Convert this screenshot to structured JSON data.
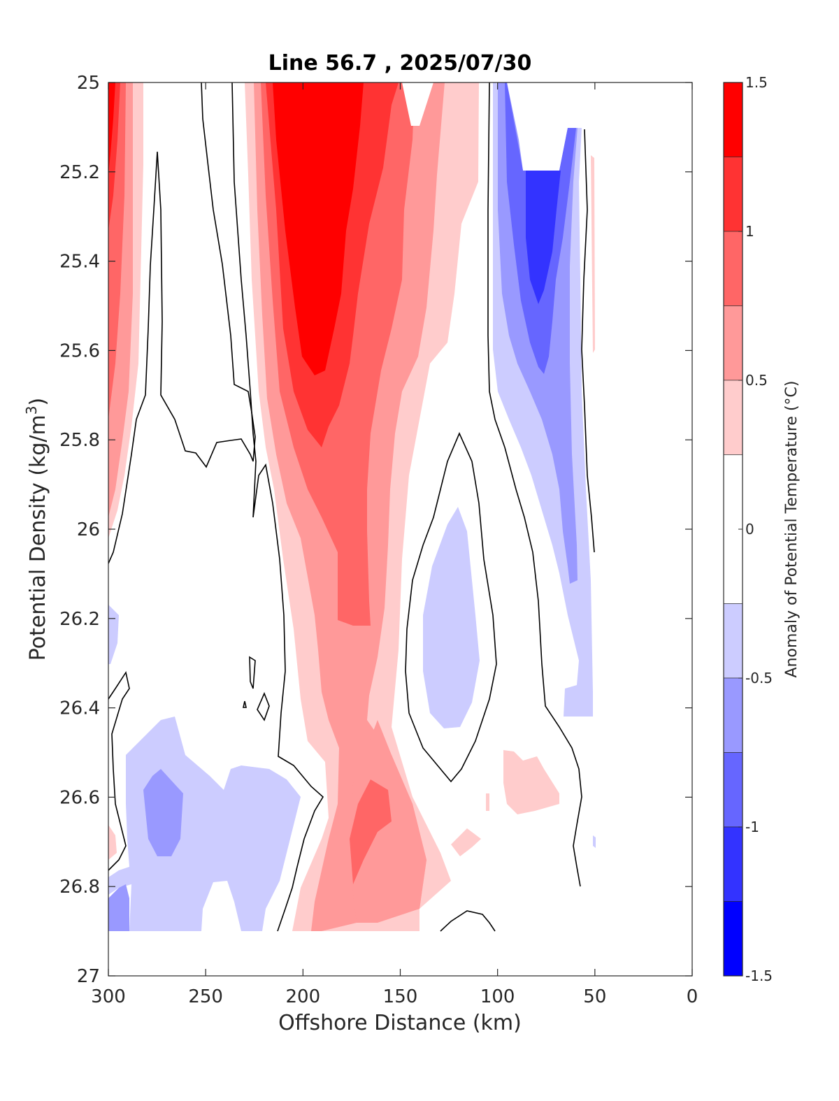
{
  "chart_data": {
    "type": "heatmap",
    "title": "Line 56.7 , 2025/07/30",
    "xlabel": "Offshore Distance (km)",
    "ylabel": "Potential Density (kg/m",
    "ylabel_superscript": "3",
    "ylabel_close": ")",
    "xlim": [
      300,
      0
    ],
    "ylim": [
      25,
      27
    ],
    "x_reversed": true,
    "y_reversed": true,
    "x_ticks": [
      "300",
      "250",
      "200",
      "150",
      "100",
      "50",
      "0"
    ],
    "y_ticks": [
      "25",
      "25.2",
      "25.4",
      "25.6",
      "25.8",
      "26",
      "26.2",
      "26.4",
      "26.6",
      "26.8",
      "27"
    ],
    "colorbar": {
      "label": "Anomaly of Potential Temperature (°C)",
      "range": [
        -1.5,
        1.5
      ],
      "tick_labels": [
        "1.5",
        "1",
        "0.5",
        "0",
        "-0.5",
        "-1",
        "-1.5"
      ],
      "levels": [
        {
          "from": 1.25,
          "to": 1.5,
          "color": "#ff0000"
        },
        {
          "from": 1.0,
          "to": 1.25,
          "color": "#ff3333"
        },
        {
          "from": 0.75,
          "to": 1.0,
          "color": "#ff6666"
        },
        {
          "from": 0.5,
          "to": 0.75,
          "color": "#ff9999"
        },
        {
          "from": 0.25,
          "to": 0.5,
          "color": "#ffcccc"
        },
        {
          "from": -0.25,
          "to": 0.25,
          "color": "#ffffff"
        },
        {
          "from": -0.5,
          "to": -0.25,
          "color": "#ccccff"
        },
        {
          "from": -0.75,
          "to": -0.5,
          "color": "#9999ff"
        },
        {
          "from": -1.0,
          "to": -0.75,
          "color": "#6666ff"
        },
        {
          "from": -1.25,
          "to": -1.0,
          "color": "#3333ff"
        },
        {
          "from": -1.5,
          "to": -1.25,
          "color": "#0000ff"
        }
      ]
    },
    "data_extent": {
      "x": [
        300,
        50
      ],
      "y": [
        25,
        26.9
      ]
    },
    "fields": [
      {
        "name": "warm core offshore 300-280 km",
        "level": 1.5,
        "x": [
          300,
          297,
          295
        ],
        "y": [
          25.0,
          25.2,
          25.0
        ]
      },
      {
        "name": "warm band at 300 km",
        "level": 0.5,
        "x": [
          300,
          283,
          279,
          283,
          300
        ],
        "y": [
          25.0,
          25.0,
          25.6,
          25.9,
          26.05
        ]
      },
      {
        "name": "warm core 200-180 km",
        "level": 1.5,
        "x": [
          206,
          182,
          187,
          193
        ],
        "y": [
          25.0,
          25.0,
          25.5,
          25.65
        ]
      },
      {
        "name": "warm tongue 215-130 km",
        "level": 0.5,
        "x": [
          220,
          125,
          140,
          165,
          195
        ],
        "y": [
          25.0,
          25.0,
          26.5,
          26.9,
          26.9
        ]
      },
      {
        "name": "cool core 90-70 km",
        "level": -1.25,
        "x": [
          88,
          72,
          80
        ],
        "y": [
          25.2,
          25.2,
          25.5
        ]
      },
      {
        "name": "cool tongue 100-55 km",
        "level": -0.5,
        "x": [
          102,
          60,
          59,
          75,
          100
        ],
        "y": [
          25.0,
          25.1,
          26.4,
          26.1,
          25.6
        ]
      },
      {
        "name": "cool lens 125-110 km",
        "level": -0.5,
        "x": [
          122,
          113,
          118,
          128
        ],
        "y": [
          25.95,
          26.3,
          26.45,
          26.3
        ]
      },
      {
        "name": "cool deep offshore 300-210 km",
        "level": -0.5,
        "x": [
          300,
          215,
          220,
          260,
          300
        ],
        "y": [
          26.75,
          26.6,
          26.9,
          26.9,
          26.9
        ]
      },
      {
        "name": "warm deep 175-160 km",
        "level": 1.0,
        "x": [
          172,
          162,
          157,
          174
        ],
        "y": [
          26.5,
          26.55,
          26.7,
          26.8
        ]
      },
      {
        "name": "warm patch 95-70 km",
        "level": 0.5,
        "x": [
          95,
          80,
          70,
          85
        ],
        "y": [
          26.5,
          26.5,
          26.6,
          26.65
        ]
      }
    ]
  }
}
